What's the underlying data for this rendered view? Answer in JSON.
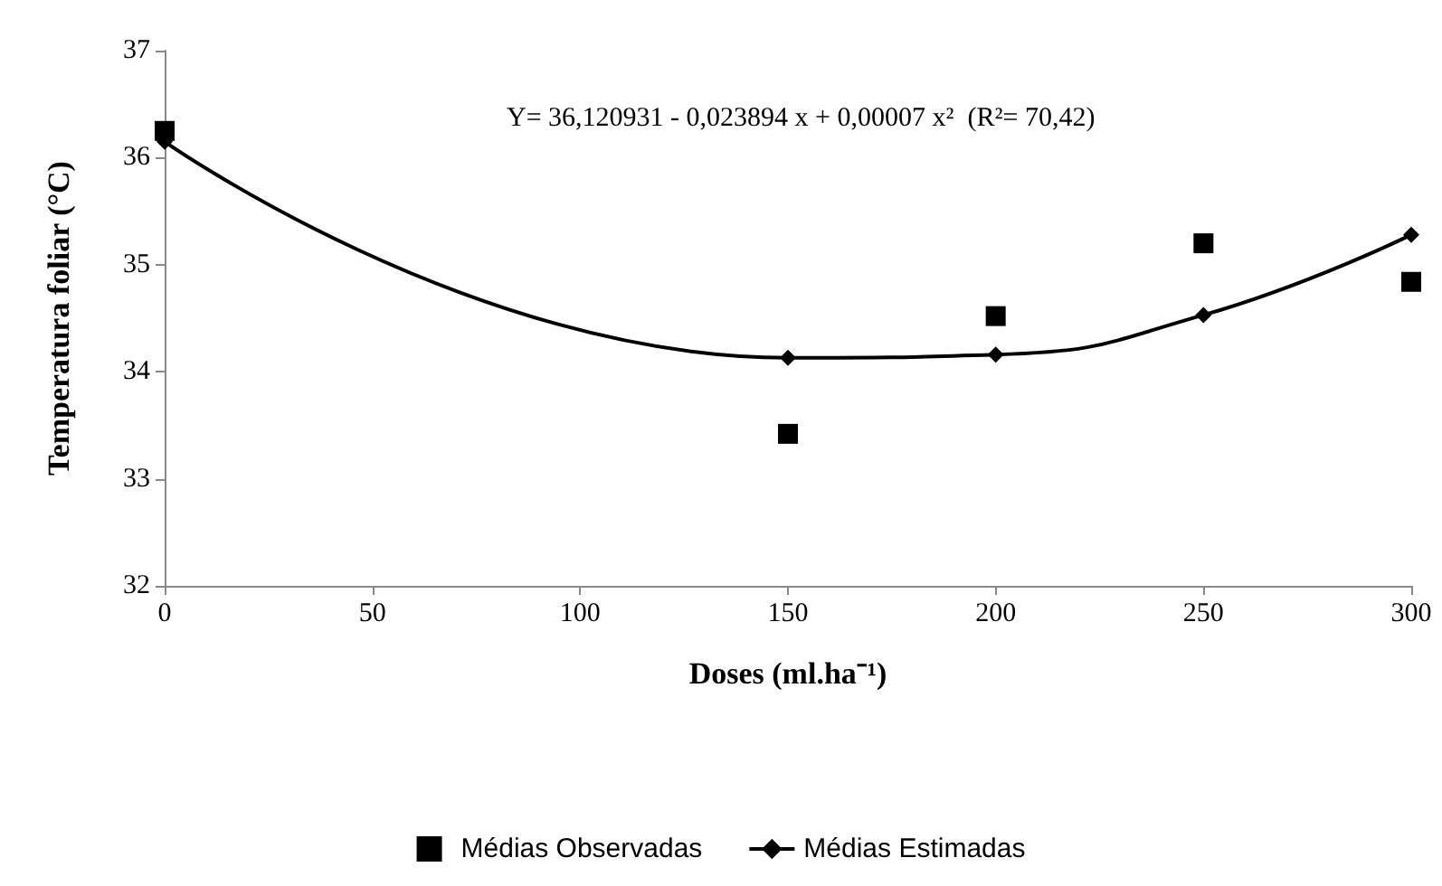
{
  "chart_data": {
    "type": "line",
    "xlabel": "Doses (ml.ha⁻¹)",
    "ylabel": "Temperatura foliar (°C)",
    "annotations": [
      "Y= 36,120931 - 0,023894 x + 0,00007 x²  (R²= 70,42)"
    ],
    "x": [
      0,
      150,
      200,
      250,
      300
    ],
    "series": [
      {
        "name": "Médias Observadas",
        "type": "scatter",
        "marker": "square",
        "color": "#000000",
        "values": [
          36.25,
          33.42,
          34.52,
          35.2,
          34.84
        ]
      },
      {
        "name": "Médias Estimadas",
        "marker": "diamond",
        "color": "#000000",
        "values": [
          36.15,
          34.13,
          34.16,
          34.53,
          35.28
        ]
      }
    ],
    "xlim": [
      0,
      300
    ],
    "xticks": [
      0,
      50,
      100,
      150,
      200,
      250,
      300
    ],
    "ylim": [
      32,
      37
    ],
    "yticks": [
      32,
      33,
      34,
      35,
      36,
      37
    ],
    "grid": false,
    "legend": "bottom"
  }
}
